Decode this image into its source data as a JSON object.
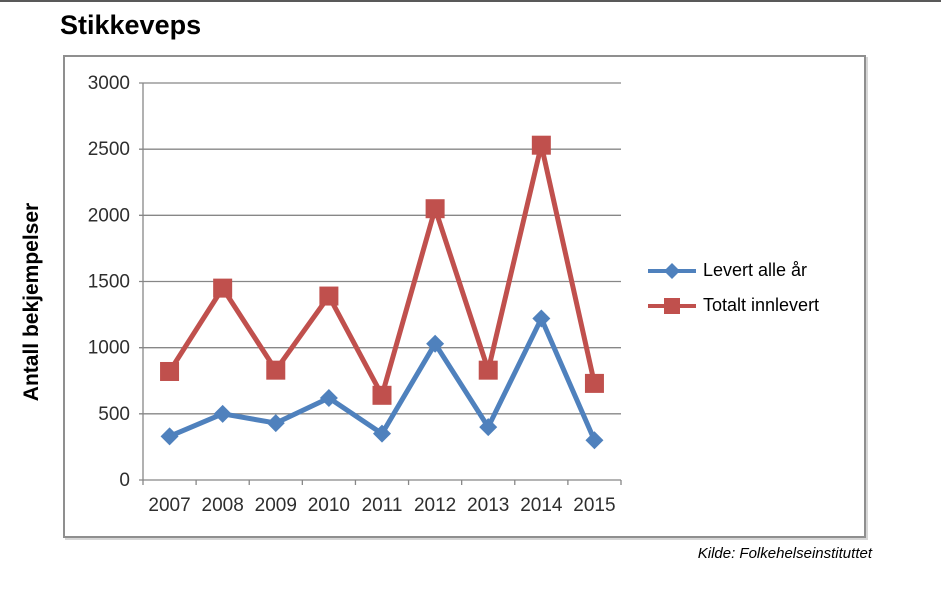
{
  "page": {
    "top_rule_color": "#595959"
  },
  "chart_data": {
    "type": "line",
    "title": "Stikkeveps",
    "categories": [
      "2007",
      "2008",
      "2009",
      "2010",
      "2011",
      "2012",
      "2013",
      "2014",
      "2015"
    ],
    "series": [
      {
        "name": "Levert alle år",
        "marker": "diamond",
        "color": "#4F81BD",
        "values": [
          330,
          500,
          430,
          620,
          350,
          1030,
          400,
          1220,
          300
        ]
      },
      {
        "name": "Totalt innlevert",
        "marker": "square",
        "color": "#C0504D",
        "values": [
          820,
          1450,
          830,
          1390,
          640,
          2050,
          830,
          2530,
          730
        ]
      }
    ],
    "xlabel": "",
    "ylabel": "Antall bekjempelser",
    "ylim": [
      0,
      3000
    ],
    "yticks": [
      0,
      500,
      1000,
      1500,
      2000,
      2500,
      3000
    ],
    "grid": true,
    "legend_position": "right",
    "source": "Kilde: Folkehelseinstituttet"
  },
  "style": {
    "grid_color": "#878787",
    "axis_color": "#878787",
    "tick_text_color": "#2e2e2e",
    "border_color": "#8f8f8f"
  }
}
